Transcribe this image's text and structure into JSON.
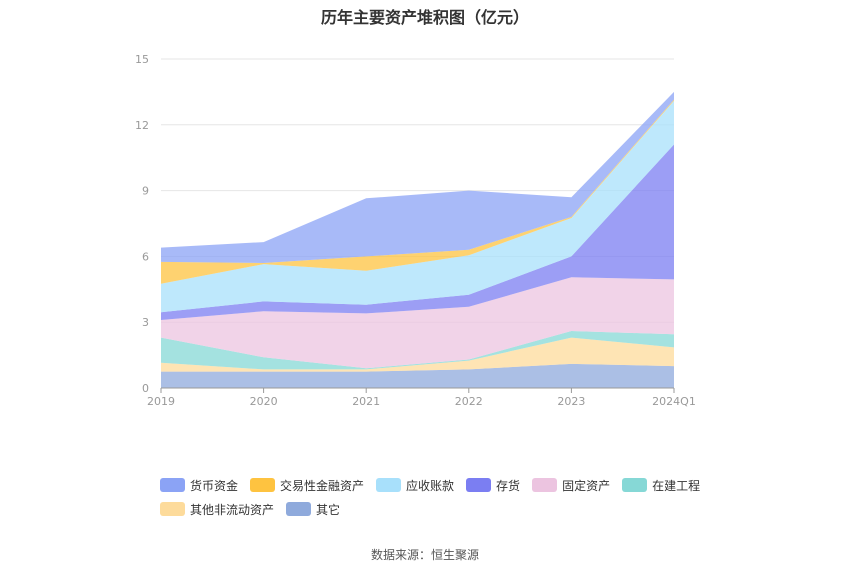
{
  "chart_data": {
    "type": "area",
    "stacked": true,
    "title": "历年主要资产堆积图（亿元）",
    "xlabel": "",
    "ylabel": "",
    "categories": [
      "2019",
      "2020",
      "2021",
      "2022",
      "2023",
      "2024Q1"
    ],
    "ylim": [
      0,
      15
    ],
    "yticks": [
      0,
      3,
      6,
      9,
      12,
      15
    ],
    "grid": true,
    "legend_position": "bottom",
    "series": [
      {
        "name": "其它",
        "color": "#8faadc",
        "values": [
          0.75,
          0.75,
          0.75,
          0.85,
          1.1,
          1.0
        ]
      },
      {
        "name": "其他非流动资产",
        "color": "#fddb9b",
        "values": [
          0.4,
          0.1,
          0.1,
          0.4,
          1.2,
          0.85
        ]
      },
      {
        "name": "在建工程",
        "color": "#86d8d6",
        "values": [
          1.15,
          0.55,
          0.05,
          0.05,
          0.3,
          0.6
        ]
      },
      {
        "name": "固定资产",
        "color": "#ecc4e0",
        "values": [
          0.8,
          2.1,
          2.5,
          2.4,
          2.45,
          2.5
        ]
      },
      {
        "name": "存货",
        "color": "#7b7ef2",
        "values": [
          0.35,
          0.45,
          0.4,
          0.55,
          0.95,
          6.15
        ]
      },
      {
        "name": "应收账款",
        "color": "#a8e0fb",
        "values": [
          1.3,
          1.7,
          1.55,
          1.8,
          1.75,
          2.0
        ]
      },
      {
        "name": "交易性金融资产",
        "color": "#fec340",
        "values": [
          1.0,
          0.05,
          0.65,
          0.25,
          0.05,
          0.05
        ]
      },
      {
        "name": "货币资金",
        "color": "#8ba3f5",
        "values": [
          0.65,
          0.95,
          2.65,
          2.7,
          0.9,
          0.35
        ]
      }
    ]
  },
  "legend_order": [
    "货币资金",
    "交易性金融资产",
    "应收账款",
    "存货",
    "固定资产",
    "在建工程",
    "其他非流动资产",
    "其它"
  ],
  "source": "数据来源：恒生聚源"
}
